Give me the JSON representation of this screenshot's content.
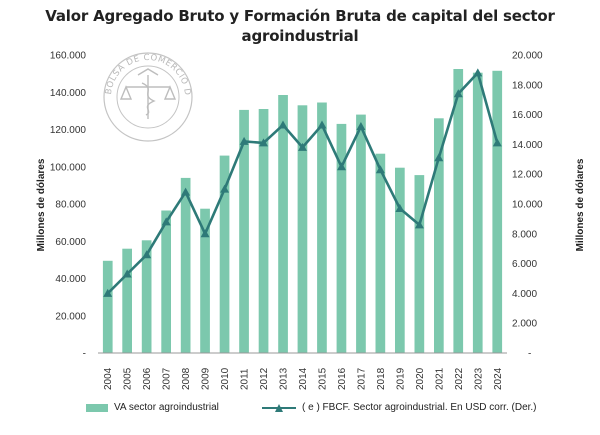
{
  "header": {
    "title_line1": "Valor Agregado Bruto y Formación Bruta de capital del sector",
    "title_line2": "agroindustrial"
  },
  "watermark": {
    "text": "BOLSA DE COMERCIO DE ROSARIO"
  },
  "colors": {
    "bar": "#7cc8ad",
    "line": "#2e7a78",
    "axis": "#999999"
  },
  "chart_data": {
    "type": "bar",
    "title": "Valor Agregado Bruto y Formación Bruta de capital del sector agroindustrial",
    "categories": [
      "2004",
      "2005",
      "2006",
      "2007",
      "2008",
      "2009",
      "2010",
      "2011",
      "2012",
      "2013",
      "2014",
      "2015",
      "2016",
      "2017",
      "2018",
      "2019",
      "2020",
      "2021",
      "2022",
      "2023",
      "2024"
    ],
    "series": [
      {
        "name": "VA sector agroindustrial",
        "type": "bar",
        "axis": "left",
        "values": [
          49500,
          56000,
          60500,
          76500,
          94000,
          77500,
          106000,
          130500,
          131000,
          138500,
          133000,
          134500,
          123000,
          128000,
          107000,
          99500,
          95500,
          126000,
          152500,
          150500,
          151500
        ]
      },
      {
        "name": "( e ) FBCF. Sector agroindustrial. En USD corr. (Der.)",
        "type": "line",
        "axis": "right",
        "values": [
          4000,
          5300,
          6600,
          8800,
          10800,
          8000,
          11000,
          14200,
          14100,
          15300,
          13800,
          15300,
          12500,
          15200,
          12300,
          9700,
          8600,
          13100,
          17400,
          18800,
          14100
        ]
      }
    ],
    "ylabel": "Millones de dólares",
    "y2label": "Millones de dólares",
    "ylim": [
      0,
      160000
    ],
    "y2lim": [
      0,
      20000
    ],
    "yticks": [
      "-",
      "20.000",
      "40.000",
      "60.000",
      "80.000",
      "100.000",
      "120.000",
      "140.000",
      "160.000"
    ],
    "y2ticks": [
      "-",
      "2.000",
      "4.000",
      "6.000",
      "8.000",
      "10.000",
      "12.000",
      "14.000",
      "16.000",
      "18.000",
      "20.000"
    ],
    "grid": false,
    "legend": "bottom"
  }
}
